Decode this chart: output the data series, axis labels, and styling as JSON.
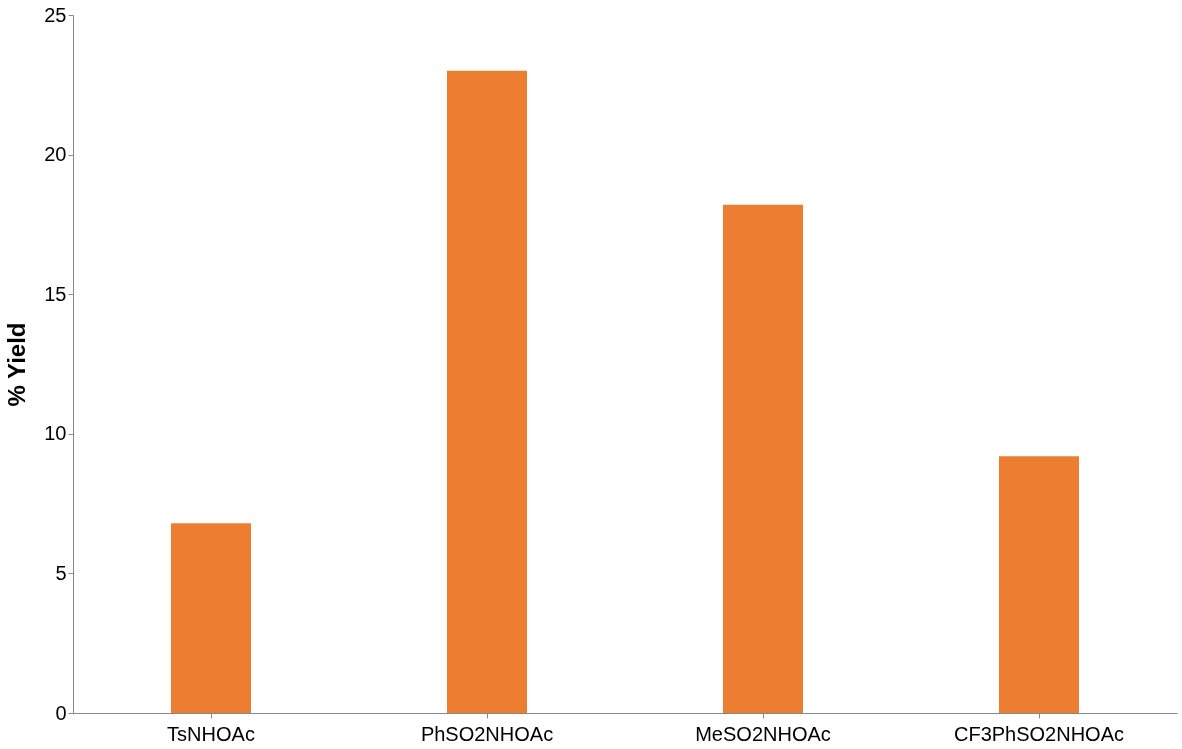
{
  "chart_data": {
    "type": "bar",
    "ylabel": "% Yield",
    "categories": [
      "TsNHOAc",
      "PhSO2NHOAc",
      "MeSO2NHOAc",
      "CF3PhSO2NHOAc"
    ],
    "values": [
      6.8,
      23,
      18.2,
      9.2
    ],
    "color": "#ed7d31",
    "ylim": [
      0,
      25
    ],
    "yticks": [
      0,
      5,
      10,
      15,
      20,
      25
    ],
    "grid": false
  }
}
